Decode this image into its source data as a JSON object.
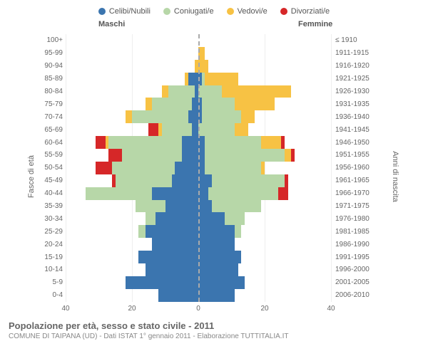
{
  "legend": {
    "items": [
      {
        "label": "Celibi/Nubili",
        "color": "#3b75af"
      },
      {
        "label": "Coniugati/e",
        "color": "#b7d7a8"
      },
      {
        "label": "Vedovi/e",
        "color": "#f7c244"
      },
      {
        "label": "Divorziati/e",
        "color": "#d62728"
      }
    ]
  },
  "gender_labels": {
    "male": "Maschi",
    "female": "Femmine"
  },
  "y_axis_left_title": "Fasce di età",
  "y_axis_right_title": "Anni di nascita",
  "x_axis": {
    "max": 40,
    "ticks": [
      40,
      20,
      0,
      20,
      40
    ]
  },
  "title": "Popolazione per età, sesso e stato civile - 2011",
  "subtitle": "COMUNE DI TAIPANA (UD) - Dati ISTAT 1° gennaio 2011 - Elaborazione TUTTITALIA.IT",
  "colors": {
    "celibi": "#3b75af",
    "coniugati": "#b7d7a8",
    "vedovi": "#f7c244",
    "divorziati": "#d62728",
    "grid": "#eeeeee",
    "zero_line": "#aaaaaa"
  },
  "rows": [
    {
      "age": "100+",
      "birth": "≤ 1910",
      "m": {
        "cel": 0,
        "con": 0,
        "ved": 0,
        "div": 0
      },
      "f": {
        "cel": 0,
        "con": 0,
        "ved": 0,
        "div": 0
      }
    },
    {
      "age": "95-99",
      "birth": "1911-1915",
      "m": {
        "cel": 0,
        "con": 0,
        "ved": 0,
        "div": 0
      },
      "f": {
        "cel": 0,
        "con": 0,
        "ved": 2,
        "div": 0
      }
    },
    {
      "age": "90-94",
      "birth": "1916-1920",
      "m": {
        "cel": 0,
        "con": 0,
        "ved": 1,
        "div": 0
      },
      "f": {
        "cel": 0,
        "con": 0,
        "ved": 3,
        "div": 0
      }
    },
    {
      "age": "85-89",
      "birth": "1921-1925",
      "m": {
        "cel": 3,
        "con": 0,
        "ved": 1,
        "div": 0
      },
      "f": {
        "cel": 1,
        "con": 1,
        "ved": 10,
        "div": 0
      }
    },
    {
      "age": "80-84",
      "birth": "1926-1930",
      "m": {
        "cel": 1,
        "con": 8,
        "ved": 2,
        "div": 0
      },
      "f": {
        "cel": 0,
        "con": 7,
        "ved": 21,
        "div": 0
      }
    },
    {
      "age": "75-79",
      "birth": "1931-1935",
      "m": {
        "cel": 2,
        "con": 12,
        "ved": 2,
        "div": 0
      },
      "f": {
        "cel": 1,
        "con": 10,
        "ved": 12,
        "div": 0
      }
    },
    {
      "age": "70-74",
      "birth": "1936-1940",
      "m": {
        "cel": 3,
        "con": 17,
        "ved": 2,
        "div": 0
      },
      "f": {
        "cel": 1,
        "con": 12,
        "ved": 4,
        "div": 0
      }
    },
    {
      "age": "65-69",
      "birth": "1941-1945",
      "m": {
        "cel": 2,
        "con": 9,
        "ved": 1,
        "div": 3
      },
      "f": {
        "cel": 0,
        "con": 11,
        "ved": 4,
        "div": 0
      }
    },
    {
      "age": "60-64",
      "birth": "1946-1950",
      "m": {
        "cel": 5,
        "con": 22,
        "ved": 1,
        "div": 3
      },
      "f": {
        "cel": 2,
        "con": 17,
        "ved": 6,
        "div": 1
      }
    },
    {
      "age": "55-59",
      "birth": "1951-1955",
      "m": {
        "cel": 5,
        "con": 18,
        "ved": 0,
        "div": 4
      },
      "f": {
        "cel": 2,
        "con": 24,
        "ved": 2,
        "div": 1
      }
    },
    {
      "age": "50-54",
      "birth": "1956-1960",
      "m": {
        "cel": 7,
        "con": 19,
        "ved": 0,
        "div": 5
      },
      "f": {
        "cel": 2,
        "con": 17,
        "ved": 1,
        "div": 0
      }
    },
    {
      "age": "45-49",
      "birth": "1961-1965",
      "m": {
        "cel": 8,
        "con": 17,
        "ved": 0,
        "div": 1
      },
      "f": {
        "cel": 4,
        "con": 22,
        "ved": 0,
        "div": 1
      }
    },
    {
      "age": "40-44",
      "birth": "1966-1970",
      "m": {
        "cel": 14,
        "con": 20,
        "ved": 0,
        "div": 0
      },
      "f": {
        "cel": 3,
        "con": 21,
        "ved": 0,
        "div": 3
      }
    },
    {
      "age": "35-39",
      "birth": "1971-1975",
      "m": {
        "cel": 10,
        "con": 9,
        "ved": 0,
        "div": 0
      },
      "f": {
        "cel": 4,
        "con": 15,
        "ved": 0,
        "div": 0
      }
    },
    {
      "age": "30-34",
      "birth": "1976-1980",
      "m": {
        "cel": 13,
        "con": 3,
        "ved": 0,
        "div": 0
      },
      "f": {
        "cel": 8,
        "con": 6,
        "ved": 0,
        "div": 0
      }
    },
    {
      "age": "25-29",
      "birth": "1981-1985",
      "m": {
        "cel": 16,
        "con": 2,
        "ved": 0,
        "div": 0
      },
      "f": {
        "cel": 11,
        "con": 2,
        "ved": 0,
        "div": 0
      }
    },
    {
      "age": "20-24",
      "birth": "1986-1990",
      "m": {
        "cel": 14,
        "con": 0,
        "ved": 0,
        "div": 0
      },
      "f": {
        "cel": 11,
        "con": 0,
        "ved": 0,
        "div": 0
      }
    },
    {
      "age": "15-19",
      "birth": "1991-1995",
      "m": {
        "cel": 18,
        "con": 0,
        "ved": 0,
        "div": 0
      },
      "f": {
        "cel": 13,
        "con": 0,
        "ved": 0,
        "div": 0
      }
    },
    {
      "age": "10-14",
      "birth": "1996-2000",
      "m": {
        "cel": 16,
        "con": 0,
        "ved": 0,
        "div": 0
      },
      "f": {
        "cel": 12,
        "con": 0,
        "ved": 0,
        "div": 0
      }
    },
    {
      "age": "5-9",
      "birth": "2001-2005",
      "m": {
        "cel": 22,
        "con": 0,
        "ved": 0,
        "div": 0
      },
      "f": {
        "cel": 14,
        "con": 0,
        "ved": 0,
        "div": 0
      }
    },
    {
      "age": "0-4",
      "birth": "2006-2010",
      "m": {
        "cel": 12,
        "con": 0,
        "ved": 0,
        "div": 0
      },
      "f": {
        "cel": 11,
        "con": 0,
        "ved": 0,
        "div": 0
      }
    }
  ]
}
